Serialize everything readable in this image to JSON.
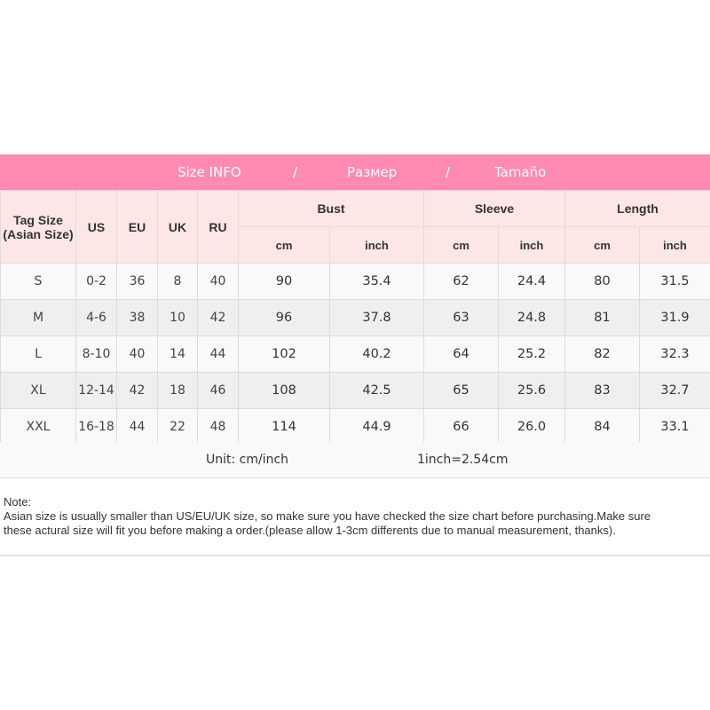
{
  "banner": {
    "title": "Size INFO",
    "sep1": "/",
    "ru": "Размер",
    "sep2": "/",
    "es": "Tamaño"
  },
  "colors": {
    "banner": "#ff8ab2",
    "header_bg": "#fde6e6"
  },
  "headers": {
    "tag": "Tag Size (Asian Size)",
    "us": "US",
    "eu": "EU",
    "uk": "UK",
    "ru": "RU",
    "bust": "Bust",
    "sleeve": "Sleeve",
    "length": "Length",
    "cm": "cm",
    "inch": "inch"
  },
  "rows": [
    {
      "tag": "S",
      "us": "0-2",
      "eu": "36",
      "uk": "8",
      "ru": "40",
      "bust_cm": "90",
      "bust_in": "35.4",
      "sleeve_cm": "62",
      "sleeve_in": "24.4",
      "length_cm": "80",
      "length_in": "31.5"
    },
    {
      "tag": "M",
      "us": "4-6",
      "eu": "38",
      "uk": "10",
      "ru": "42",
      "bust_cm": "96",
      "bust_in": "37.8",
      "sleeve_cm": "63",
      "sleeve_in": "24.8",
      "length_cm": "81",
      "length_in": "31.9"
    },
    {
      "tag": "L",
      "us": "8-10",
      "eu": "40",
      "uk": "14",
      "ru": "44",
      "bust_cm": "102",
      "bust_in": "40.2",
      "sleeve_cm": "64",
      "sleeve_in": "25.2",
      "length_cm": "82",
      "length_in": "32.3"
    },
    {
      "tag": "XL",
      "us": "12-14",
      "eu": "42",
      "uk": "18",
      "ru": "46",
      "bust_cm": "108",
      "bust_in": "42.5",
      "sleeve_cm": "65",
      "sleeve_in": "25.6",
      "length_cm": "83",
      "length_in": "32.7"
    },
    {
      "tag": "XXL",
      "us": "16-18",
      "eu": "44",
      "uk": "22",
      "ru": "48",
      "bust_cm": "114",
      "bust_in": "44.9",
      "sleeve_cm": "66",
      "sleeve_in": "26.0",
      "length_cm": "84",
      "length_in": "33.1"
    }
  ],
  "unit": {
    "label": "Unit: cm/inch",
    "conversion": "1inch=2.54cm"
  },
  "note": {
    "title": "Note:",
    "line1": "Asian size is usually smaller than US/EU/UK size, so make sure you have checked the size chart before purchasing.Make sure",
    "line2": "these actural size will fit you before making a order.(please allow 1-3cm differents due to manual measurement, thanks)."
  }
}
